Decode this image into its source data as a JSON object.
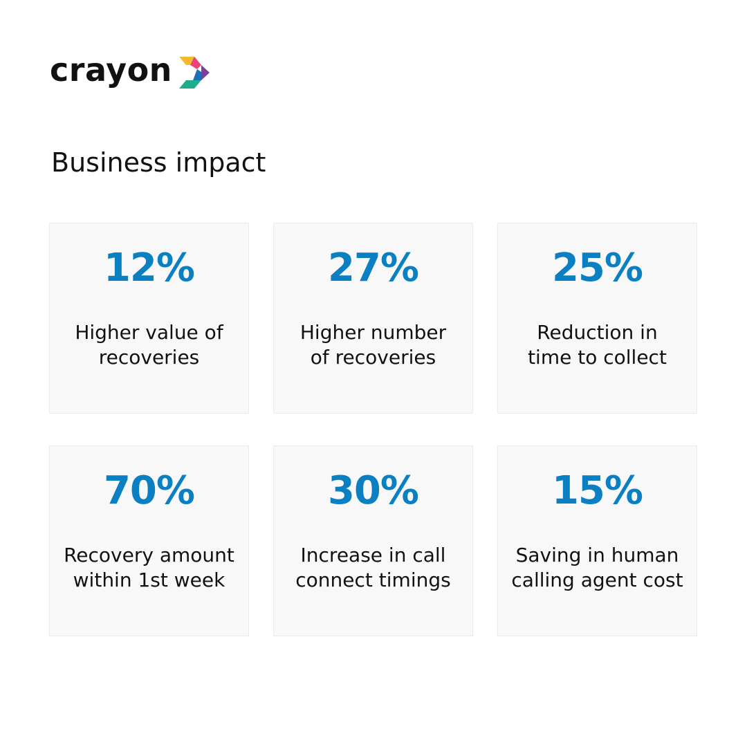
{
  "brand": {
    "name": "crayon",
    "colors": {
      "yellow": "#f5b82e",
      "pink": "#e8437a",
      "purple": "#7b3fa0",
      "blue": "#1f6fb8",
      "green": "#1fae8c"
    }
  },
  "page": {
    "title": "Business impact"
  },
  "accent_color": "#0a7fc2",
  "stats": [
    {
      "value": "12%",
      "label_line1": "Higher value of",
      "label_line2": "recoveries"
    },
    {
      "value": "27%",
      "label_line1": "Higher number",
      "label_line2": "of recoveries"
    },
    {
      "value": "25%",
      "label_line1": "Reduction in",
      "label_line2": "time to collect"
    },
    {
      "value": "70%",
      "label_line1": "Recovery amount",
      "label_line2": "within 1st week"
    },
    {
      "value": "30%",
      "label_line1": "Increase in call",
      "label_line2": "connect timings"
    },
    {
      "value": "15%",
      "label_line1": "Saving in human",
      "label_line2": "calling agent cost"
    }
  ]
}
